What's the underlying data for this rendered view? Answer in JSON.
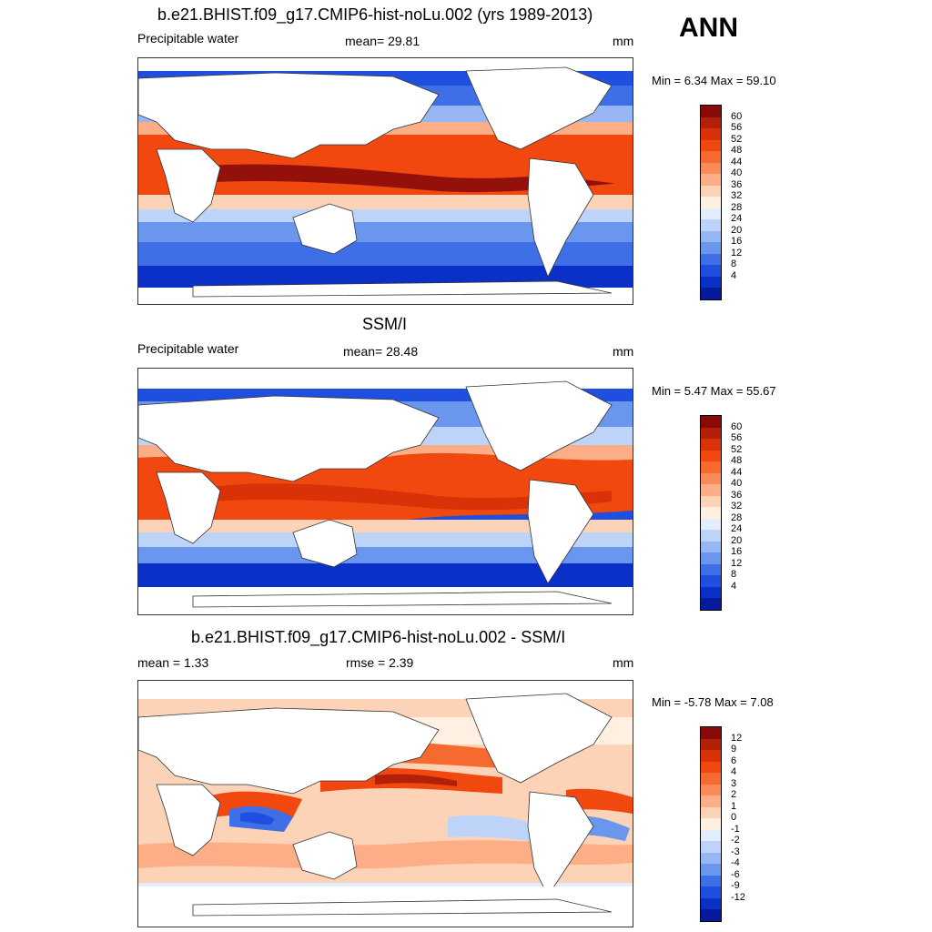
{
  "season": "ANN",
  "panels": [
    {
      "title": "b.e21.BHIST.f09_g17.CMIP6-hist-noLu.002 (yrs 1989-2013)",
      "left_label": "Precipitable water",
      "center_label": "mean=  29.81",
      "units": "mm",
      "minmax": "Min =   6.34 Max =  59.10"
    },
    {
      "title": "SSM/I",
      "left_label": "Precipitable water",
      "center_label": "mean=  28.48",
      "units": "mm",
      "minmax": "Min =   5.47 Max =  55.67"
    },
    {
      "title": "b.e21.BHIST.f09_g17.CMIP6-hist-noLu.002 - SSM/I",
      "left_label": "mean =   1.33",
      "center_label": "rmse =   2.39",
      "units": "mm",
      "minmax": "Min =  -5.78 Max =   7.08"
    }
  ],
  "colorbar_pw": {
    "ticks": [
      "60",
      "56",
      "52",
      "48",
      "44",
      "40",
      "36",
      "32",
      "28",
      "24",
      "20",
      "16",
      "12",
      "8",
      "4"
    ],
    "colors": [
      "#8a0a0a",
      "#b32008",
      "#d93108",
      "#f0480e",
      "#f76a2f",
      "#fb8a59",
      "#fdae87",
      "#fdd3b8",
      "#fff0e2",
      "#e3eefc",
      "#bdd3f8",
      "#96b7f4",
      "#6b96ee",
      "#3f6fe6",
      "#1e4fde",
      "#0a30c7",
      "#061a9c"
    ]
  },
  "colorbar_diff": {
    "ticks": [
      "12",
      "9",
      "6",
      "4",
      "3",
      "2",
      "1",
      "0",
      "-1",
      "-2",
      "-3",
      "-4",
      "-6",
      "-9",
      "-12"
    ],
    "colors": [
      "#8a0a0a",
      "#b32008",
      "#d93108",
      "#f0480e",
      "#f76a2f",
      "#fb8a59",
      "#fdae87",
      "#fdd3b8",
      "#fff0e2",
      "#e3eefc",
      "#bdd3f8",
      "#96b7f4",
      "#6b96ee",
      "#3f6fe6",
      "#1e4fde",
      "#0a30c7",
      "#061a9c"
    ]
  }
}
